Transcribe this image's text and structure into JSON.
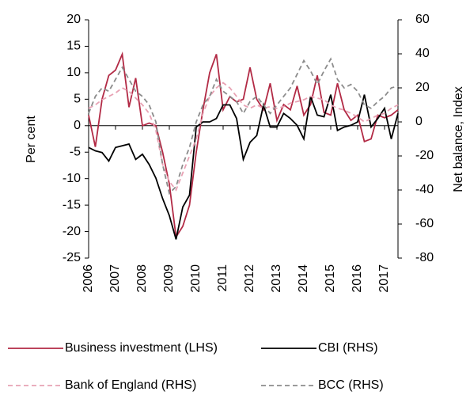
{
  "chart_data": {
    "type": "line",
    "ylabel": "Per cent",
    "y2label": "Net balance, Index",
    "x": [
      2006,
      2006.25,
      2006.5,
      2006.75,
      2007,
      2007.25,
      2007.5,
      2007.75,
      2008,
      2008.25,
      2008.5,
      2008.75,
      2009,
      2009.25,
      2009.5,
      2009.75,
      2010,
      2010.25,
      2010.5,
      2010.75,
      2011,
      2011.25,
      2011.5,
      2011.75,
      2012,
      2012.25,
      2012.5,
      2012.75,
      2013,
      2013.25,
      2013.5,
      2013.75,
      2014,
      2014.25,
      2014.5,
      2014.75,
      2015,
      2015.25,
      2015.5,
      2015.75,
      2016,
      2016.25,
      2016.5,
      2016.75,
      2017,
      2017.25,
      2017.5
    ],
    "xlim": [
      2006,
      2017.5
    ],
    "xticks": [
      2006,
      2007,
      2008,
      2009,
      2010,
      2011,
      2012,
      2013,
      2014,
      2015,
      2016,
      2017
    ],
    "ylim": [
      -25,
      20
    ],
    "yticks": [
      20,
      15,
      10,
      5,
      0,
      -5,
      -10,
      -15,
      -20,
      -25
    ],
    "y2lim": [
      -80,
      60
    ],
    "y2ticks": [
      60,
      40,
      20,
      0,
      -20,
      -40,
      -60,
      -80
    ],
    "series": [
      {
        "name": "Business investment (LHS)",
        "color": "#b22a45",
        "style": "solid",
        "values": [
          2,
          -4,
          5,
          9.5,
          10.5,
          13.5,
          3.5,
          9,
          0,
          0.5,
          0,
          -5,
          -11,
          -21,
          -19,
          -15,
          -5,
          3,
          10,
          13.5,
          3,
          5.5,
          4.5,
          5,
          11,
          5,
          3,
          8,
          1,
          4,
          3,
          7.5,
          2,
          4,
          9.5,
          2.5,
          2,
          8,
          3,
          1,
          2,
          -3,
          -2.5,
          2,
          1.5,
          2,
          3
        ]
      },
      {
        "name": "CBI (RHS)",
        "color": "#000000",
        "style": "solid",
        "axis": "y2",
        "values": [
          -15,
          -17,
          -18,
          -23,
          -15,
          -14,
          -13,
          -22,
          -19,
          -25,
          -33,
          -45,
          -55,
          -69,
          -50,
          -43,
          -3,
          0,
          0,
          2,
          10,
          10,
          2,
          -22,
          -12,
          -8,
          10,
          -3,
          -3,
          5,
          2,
          -2,
          -10,
          15,
          4,
          3,
          16,
          -5,
          -3,
          -2,
          0,
          16,
          -3,
          2,
          8,
          -10,
          5
        ]
      },
      {
        "name": "Bank of England (RHS)",
        "color": "#e8a2b4",
        "style": "dashed",
        "axis": "y2",
        "values": [
          8,
          10,
          13,
          15,
          17,
          20,
          18,
          14,
          10,
          5,
          -5,
          -25,
          -35,
          -40,
          -30,
          -20,
          -10,
          5,
          15,
          20,
          23,
          20,
          15,
          10,
          8,
          10,
          8,
          9,
          8,
          9,
          11,
          12,
          13,
          15,
          14,
          13,
          10,
          8,
          7,
          5,
          3,
          0,
          2,
          4,
          5,
          8,
          10
        ]
      },
      {
        "name": "BCC (RHS)",
        "color": "#8c8c8c",
        "style": "dashed",
        "axis": "y2",
        "values": [
          5,
          15,
          20,
          18,
          25,
          32,
          25,
          18,
          15,
          10,
          0,
          -25,
          -42,
          -38,
          -25,
          -15,
          0,
          10,
          15,
          25,
          18,
          15,
          12,
          5,
          12,
          15,
          10,
          5,
          10,
          15,
          20,
          28,
          36,
          30,
          22,
          30,
          37,
          25,
          20,
          22,
          18,
          10,
          8,
          12,
          15,
          20,
          21
        ]
      }
    ]
  }
}
